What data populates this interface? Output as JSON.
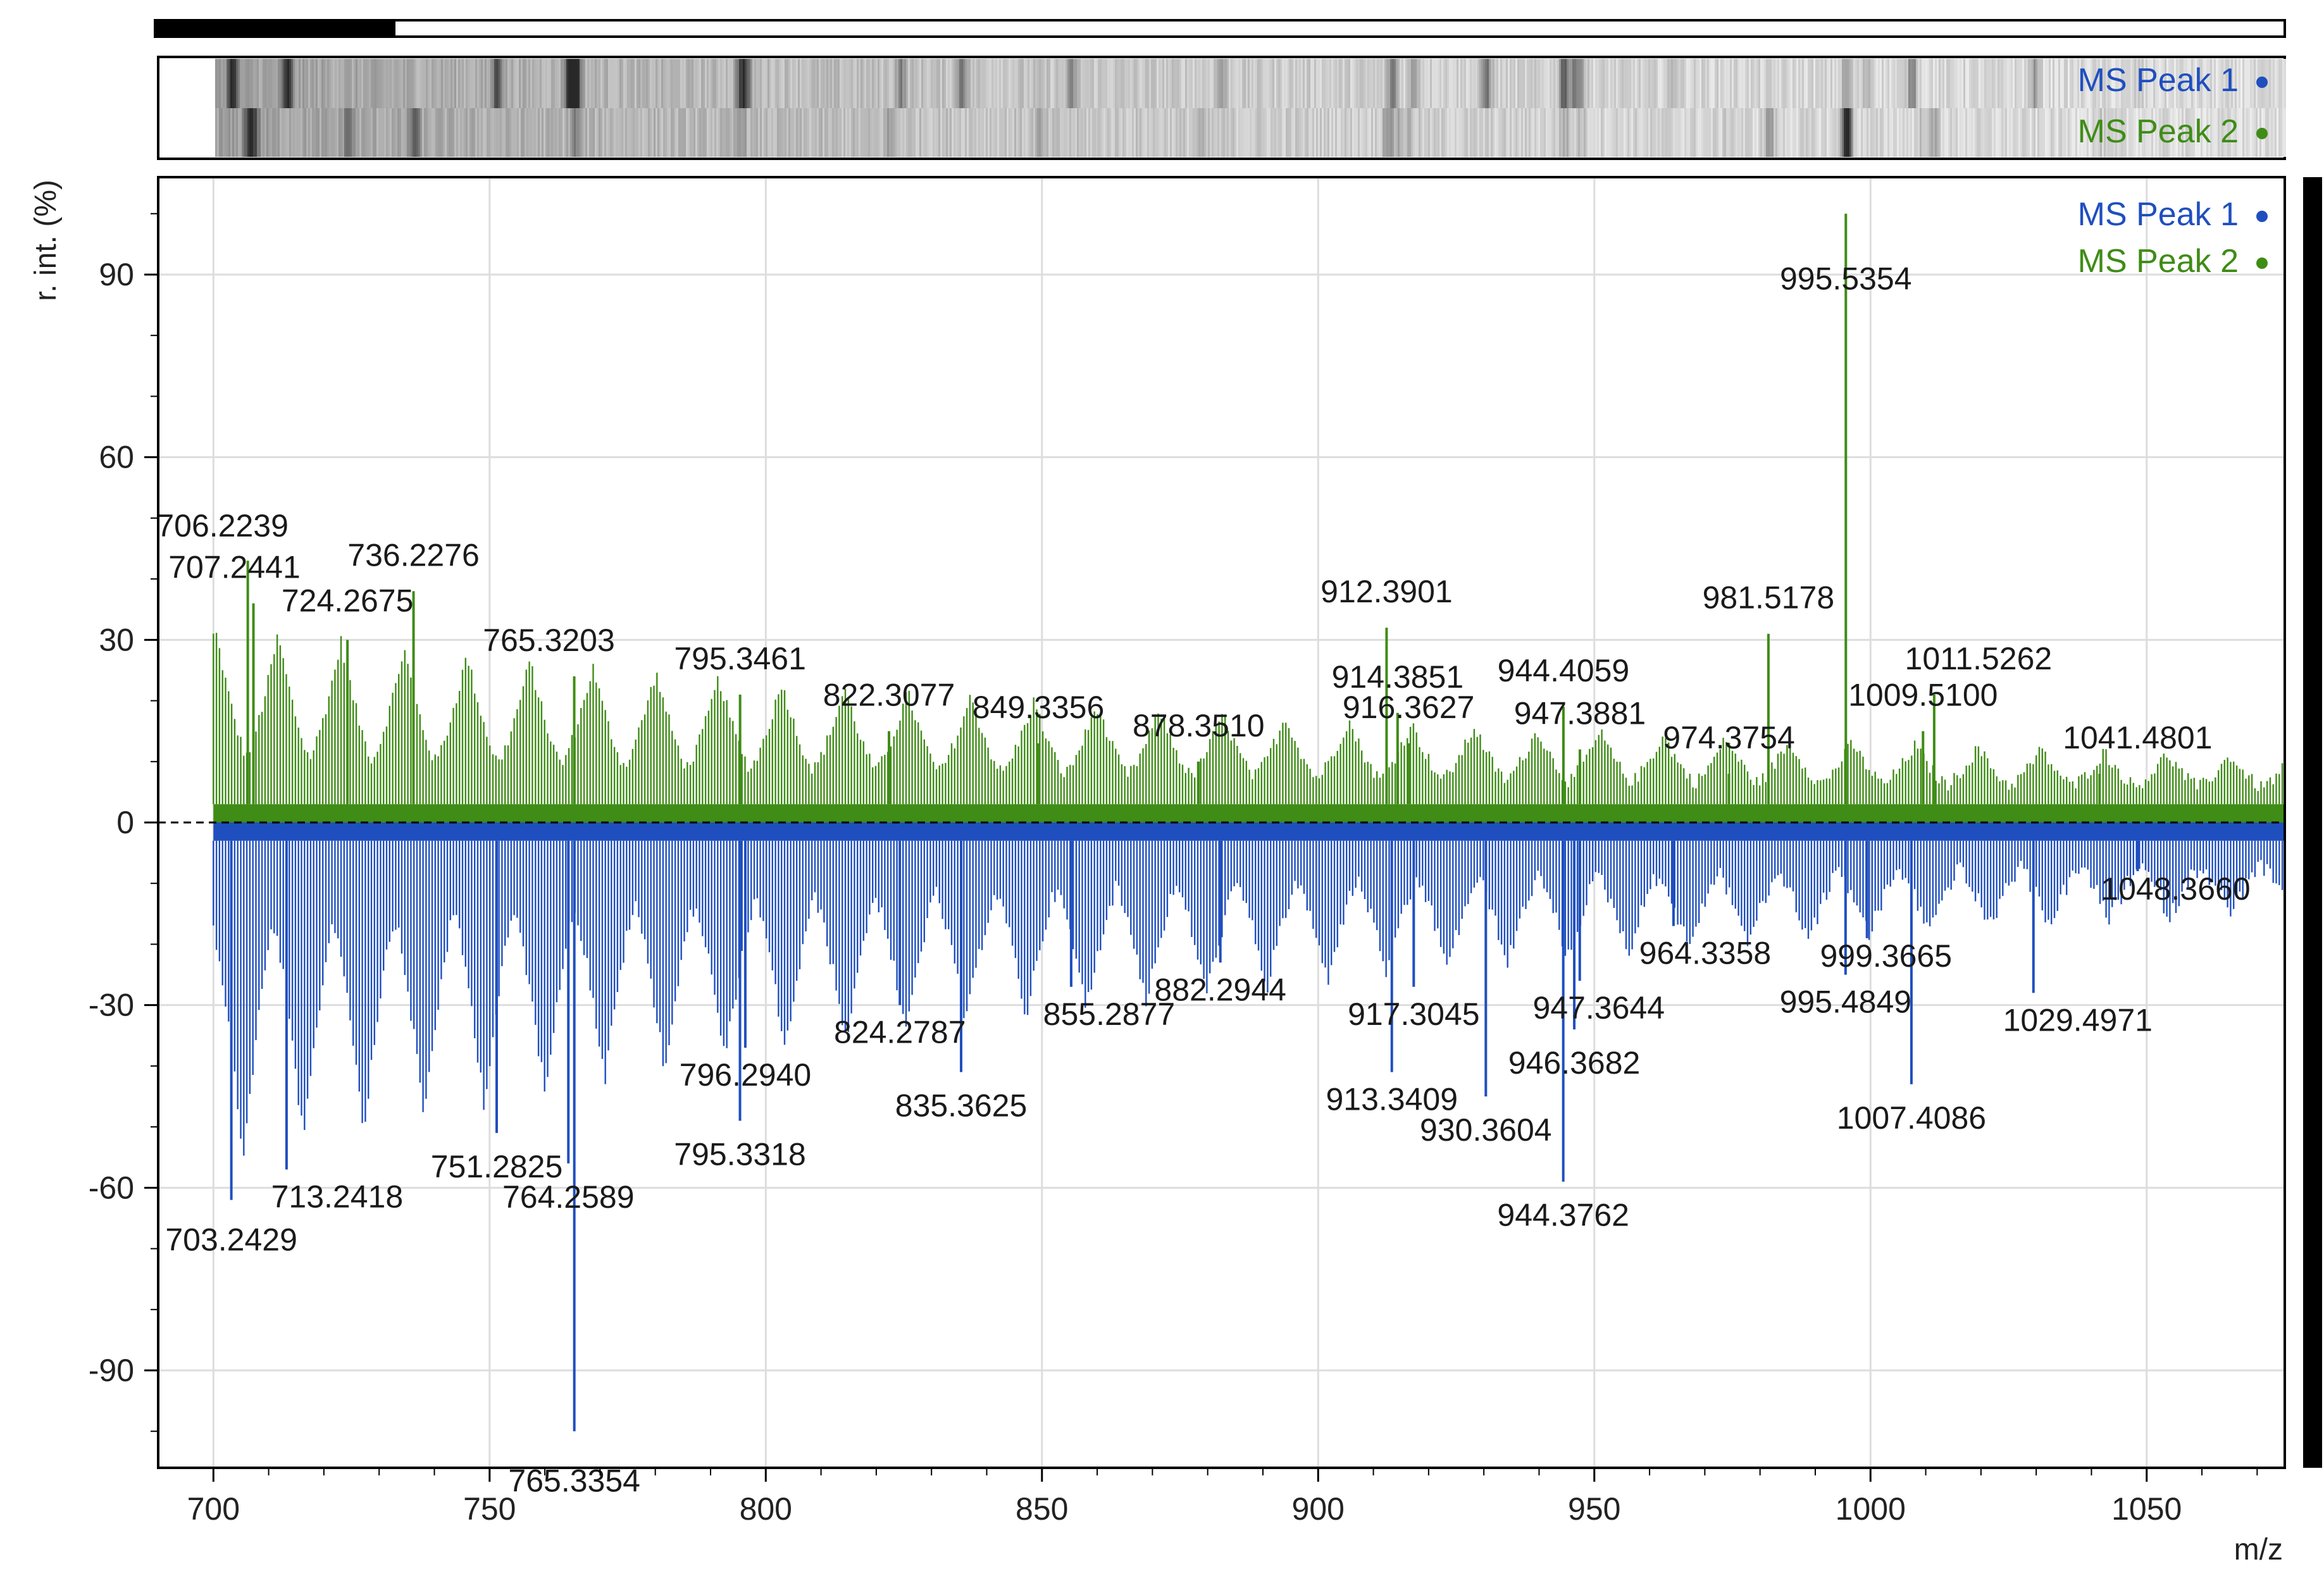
{
  "colors": {
    "peak1": "#1f4fbf",
    "peak2": "#3f8c16",
    "grid": "#dddddd",
    "frame": "#000000"
  },
  "overview": {
    "legend": [
      {
        "name": "MS Peak 1",
        "color": "#1f4fbf"
      },
      {
        "name": "MS Peak 2",
        "color": "#3f8c16"
      }
    ]
  },
  "legend": [
    {
      "name": "MS Peak 1",
      "color": "#1f4fbf"
    },
    {
      "name": "MS Peak 2",
      "color": "#3f8c16"
    }
  ],
  "chart_data": {
    "type": "line",
    "chart_kind": "mirror mass spectrum",
    "xlabel": "m/z",
    "ylabel": "r. int. (%)",
    "xlim": [
      690,
      1075
    ],
    "ylim": [
      -106,
      106
    ],
    "x_ticks": [
      700,
      750,
      800,
      850,
      900,
      950,
      1000,
      1050
    ],
    "y_ticks": [
      90,
      60,
      30,
      0,
      -30,
      -60,
      -90
    ],
    "grid": true,
    "legend_position": "top-right",
    "series": [
      {
        "name": "MS Peak 2",
        "direction": "up",
        "labeled_peaks": [
          {
            "x": 706.2239,
            "y": 43,
            "label": "706.2239"
          },
          {
            "x": 707.2441,
            "y": 36,
            "label": "707.2441"
          },
          {
            "x": 724.2675,
            "y": 30,
            "label": "724.2675"
          },
          {
            "x": 736.2276,
            "y": 38,
            "label": "736.2276"
          },
          {
            "x": 765.3203,
            "y": 24,
            "label": "765.3203"
          },
          {
            "x": 795.3461,
            "y": 21,
            "label": "795.3461"
          },
          {
            "x": 822.3077,
            "y": 15,
            "label": "822.3077"
          },
          {
            "x": 849.3356,
            "y": 13,
            "label": "849.3356"
          },
          {
            "x": 878.351,
            "y": 10,
            "label": "878.3510"
          },
          {
            "x": 912.3901,
            "y": 32,
            "label": "912.3901"
          },
          {
            "x": 914.3851,
            "y": 18,
            "label": "914.3851"
          },
          {
            "x": 916.3627,
            "y": 13,
            "label": "916.3627"
          },
          {
            "x": 944.4059,
            "y": 19,
            "label": "944.4059"
          },
          {
            "x": 947.3881,
            "y": 12,
            "label": "947.3881"
          },
          {
            "x": 974.3754,
            "y": 8,
            "label": "974.3754"
          },
          {
            "x": 981.5178,
            "y": 31,
            "label": "981.5178"
          },
          {
            "x": 995.5354,
            "y": 100,
            "label": "995.5354"
          },
          {
            "x": 1009.51,
            "y": 15,
            "label": "1009.5100"
          },
          {
            "x": 1011.5262,
            "y": 21,
            "label": "1011.5262"
          },
          {
            "x": 1041.4801,
            "y": 8,
            "label": "1041.4801"
          }
        ]
      },
      {
        "name": "MS Peak 1",
        "direction": "down",
        "labeled_peaks": [
          {
            "x": 703.2429,
            "y": -62,
            "label": "703.2429"
          },
          {
            "x": 713.2418,
            "y": -57,
            "label": "713.2418"
          },
          {
            "x": 751.2825,
            "y": -51,
            "label": "751.2825"
          },
          {
            "x": 764.2589,
            "y": -56,
            "label": "764.2589"
          },
          {
            "x": 765.3354,
            "y": -100,
            "label": "765.3354"
          },
          {
            "x": 795.3318,
            "y": -49,
            "label": "795.3318"
          },
          {
            "x": 796.294,
            "y": -37,
            "label": "796.2940"
          },
          {
            "x": 824.2787,
            "y": -30,
            "label": "824.2787"
          },
          {
            "x": 835.3625,
            "y": -41,
            "label": "835.3625"
          },
          {
            "x": 855.2877,
            "y": -27,
            "label": "855.2877"
          },
          {
            "x": 882.2944,
            "y": -23,
            "label": "882.2944"
          },
          {
            "x": 913.3409,
            "y": -41,
            "label": "913.3409"
          },
          {
            "x": 917.3045,
            "y": -27,
            "label": "917.3045"
          },
          {
            "x": 930.3604,
            "y": -45,
            "label": "930.3604"
          },
          {
            "x": 944.3762,
            "y": -59,
            "label": "944.3762"
          },
          {
            "x": 946.3682,
            "y": -34,
            "label": "946.3682"
          },
          {
            "x": 947.3644,
            "y": -26,
            "label": "947.3644"
          },
          {
            "x": 964.3358,
            "y": -17,
            "label": "964.3358"
          },
          {
            "x": 995.4849,
            "y": -25,
            "label": "995.4849"
          },
          {
            "x": 999.3665,
            "y": -19,
            "label": "999.3665"
          },
          {
            "x": 1007.4086,
            "y": -43,
            "label": "1007.4086"
          },
          {
            "x": 1029.4971,
            "y": -28,
            "label": "1029.4971"
          },
          {
            "x": 1048.366,
            "y": -8,
            "label": "1048.3660"
          }
        ]
      }
    ]
  }
}
